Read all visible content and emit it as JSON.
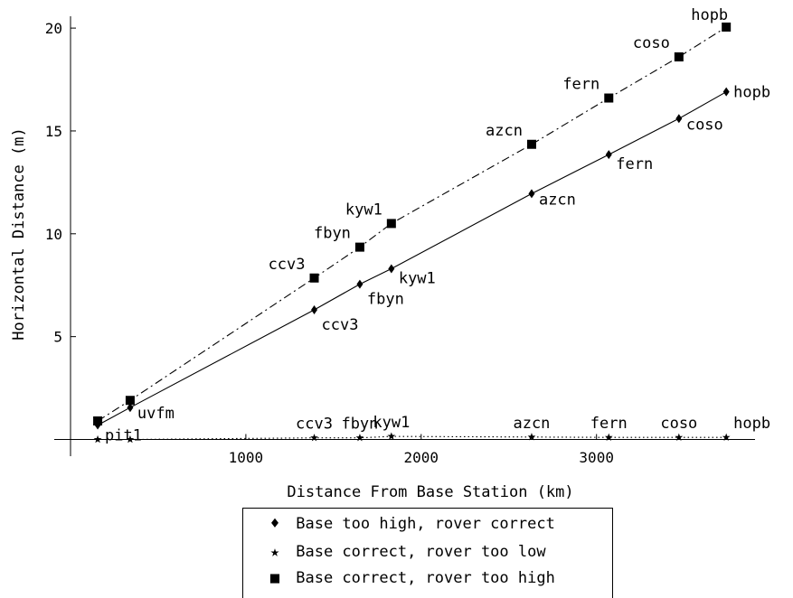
{
  "chart_data": {
    "type": "scatter",
    "xlabel": "Distance From Base Station (km)",
    "ylabel": "Horizontal Distance (m)",
    "xlim": [
      0,
      4000
    ],
    "ylim": [
      -0.3,
      20.5
    ],
    "x_ticks": [
      1000,
      2000,
      3000
    ],
    "y_ticks": [
      5,
      10,
      15,
      20
    ],
    "grid": false,
    "legend_position": "bottom-center",
    "series": [
      {
        "name": "Base too high, rover correct",
        "marker": "diamond",
        "line": "solid",
        "points": [
          {
            "label": "pit1",
            "x": 155,
            "y": 0.7
          },
          {
            "label": "uvfm",
            "x": 340,
            "y": 1.55
          },
          {
            "label": "ccv3",
            "x": 1390,
            "y": 6.3
          },
          {
            "label": "fbyn",
            "x": 1650,
            "y": 7.55
          },
          {
            "label": "kyw1",
            "x": 1830,
            "y": 8.3
          },
          {
            "label": "azcn",
            "x": 2630,
            "y": 11.95
          },
          {
            "label": "fern",
            "x": 3070,
            "y": 13.85
          },
          {
            "label": "coso",
            "x": 3470,
            "y": 15.6
          },
          {
            "label": "hopb",
            "x": 3740,
            "y": 16.9
          }
        ]
      },
      {
        "name": "Base correct, rover too low",
        "marker": "star",
        "line": "dotted",
        "points": [
          {
            "label": "",
            "x": 155,
            "y": 0.0
          },
          {
            "label": "",
            "x": 340,
            "y": 0.0
          },
          {
            "label": "ccv3",
            "x": 1390,
            "y": 0.08
          },
          {
            "label": "fbyn",
            "x": 1650,
            "y": 0.08
          },
          {
            "label": "kyw1",
            "x": 1830,
            "y": 0.15
          },
          {
            "label": "azcn",
            "x": 2630,
            "y": 0.12
          },
          {
            "label": "fern",
            "x": 3070,
            "y": 0.1
          },
          {
            "label": "coso",
            "x": 3470,
            "y": 0.1
          },
          {
            "label": "hopb",
            "x": 3740,
            "y": 0.1
          }
        ]
      },
      {
        "name": "Base correct, rover too high",
        "marker": "square",
        "line": "dashdot",
        "points": [
          {
            "label": "",
            "x": 155,
            "y": 0.9
          },
          {
            "label": "",
            "x": 340,
            "y": 1.9
          },
          {
            "label": "ccv3",
            "x": 1390,
            "y": 7.85
          },
          {
            "label": "fbyn",
            "x": 1650,
            "y": 9.35
          },
          {
            "label": "kyw1",
            "x": 1830,
            "y": 10.5
          },
          {
            "label": "azcn",
            "x": 2630,
            "y": 14.35
          },
          {
            "label": "fern",
            "x": 3070,
            "y": 16.6
          },
          {
            "label": "coso",
            "x": 3470,
            "y": 18.6
          },
          {
            "label": "hopb",
            "x": 3740,
            "y": 20.05
          }
        ]
      }
    ]
  }
}
